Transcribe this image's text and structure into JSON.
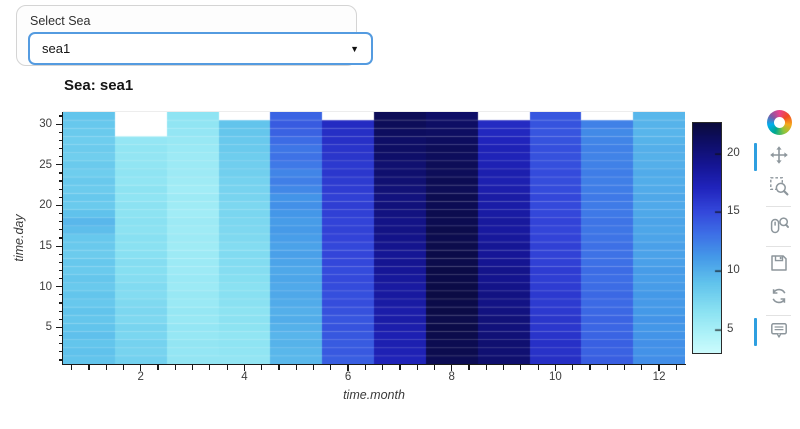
{
  "widget": {
    "label": "Select Sea",
    "selected_value": "sea1",
    "caret": "▼"
  },
  "toolbar": {
    "icon_color": "#8d969c",
    "active_color": "#2e9fe0",
    "logo_colors": [
      "#e9418c",
      "#f04923",
      "#f6a91b",
      "#8cc63f",
      "#00a88e",
      "#00aeef",
      "#7f58a4",
      "#e9418c"
    ],
    "tools": [
      {
        "name": "pan",
        "active": true,
        "divider_after": false
      },
      {
        "name": "box-zoom",
        "active": false,
        "divider_after": true
      },
      {
        "name": "wheel-zoom",
        "active": false,
        "divider_after": true
      },
      {
        "name": "save",
        "active": false,
        "divider_after": false
      },
      {
        "name": "reset",
        "active": false,
        "divider_after": true
      },
      {
        "name": "hover",
        "active": true,
        "divider_after": false
      }
    ]
  },
  "chart_data": {
    "type": "heatmap",
    "title": "Sea: sea1",
    "xlabel": "time.month",
    "ylabel": "time.day",
    "xlim": [
      0.5,
      12.5
    ],
    "ylim": [
      0.5,
      31.5
    ],
    "x_major_ticks": [
      2,
      4,
      6,
      8,
      10,
      12
    ],
    "x_minor_step": 0.33333,
    "y_major_ticks": [
      5,
      10,
      15,
      20,
      25,
      30
    ],
    "y_minor_step": 1,
    "color_low": 3.0,
    "color_high": 22.6,
    "colorbar_ticks": [
      5,
      10,
      15,
      20
    ],
    "colormap_stops": [
      [
        0.0,
        "#ccfbfd"
      ],
      [
        0.08,
        "#aef2f8"
      ],
      [
        0.18,
        "#8be2f2"
      ],
      [
        0.3,
        "#62c4ec"
      ],
      [
        0.42,
        "#4498e8"
      ],
      [
        0.52,
        "#3d6ee6"
      ],
      [
        0.62,
        "#3346da"
      ],
      [
        0.72,
        "#2024bc"
      ],
      [
        0.82,
        "#151593"
      ],
      [
        0.92,
        "#0e0e66"
      ],
      [
        1.0,
        "#0a0a3c"
      ]
    ],
    "series": [
      {
        "month": 1,
        "values": [
          8.9,
          9.0,
          8.8,
          9.1,
          8.9,
          8.7,
          8.9,
          8.6,
          8.8,
          8.5,
          8.7,
          8.4,
          8.6,
          8.3,
          8.5,
          8.6,
          9.2,
          9.6,
          9.0,
          8.4,
          8.6,
          8.3,
          8.5,
          8.2,
          8.4,
          8.1,
          8.3,
          8.2,
          8.4,
          8.6,
          8.8
        ]
      },
      {
        "month": 2,
        "values": [
          7.9,
          7.7,
          7.8,
          7.5,
          7.6,
          7.3,
          7.4,
          7.2,
          7.0,
          7.1,
          6.9,
          6.8,
          6.9,
          6.7,
          6.6,
          6.7,
          6.5,
          6.6,
          6.4,
          6.5,
          6.3,
          6.4,
          6.2,
          6.3,
          6.2,
          6.1,
          6.2,
          6.0
        ]
      },
      {
        "month": 3,
        "values": [
          6.1,
          6.0,
          6.1,
          5.9,
          6.0,
          5.8,
          5.9,
          5.7,
          5.8,
          5.6,
          5.7,
          5.5,
          5.6,
          5.5,
          5.4,
          5.5,
          5.4,
          5.5,
          5.3,
          5.4,
          5.5,
          5.3,
          5.4,
          5.5,
          5.6,
          5.5,
          5.7,
          5.8,
          6.0,
          6.2,
          6.3
        ]
      },
      {
        "month": 4,
        "values": [
          6.1,
          6.2,
          6.3,
          6.2,
          6.4,
          6.5,
          6.4,
          6.6,
          6.7,
          6.6,
          6.8,
          6.9,
          7.0,
          7.1,
          7.0,
          7.2,
          7.3,
          7.4,
          7.5,
          7.4,
          7.6,
          7.7,
          7.8,
          8.0,
          8.1,
          8.2,
          8.4,
          8.5,
          8.7,
          8.9
        ]
      },
      {
        "month": 5,
        "values": [
          9.5,
          9.6,
          9.8,
          9.7,
          9.9,
          10.1,
          10.0,
          10.2,
          10.4,
          10.3,
          10.5,
          10.4,
          10.6,
          10.8,
          10.7,
          10.9,
          11.1,
          11.0,
          11.3,
          11.6,
          11.4,
          12.0,
          12.4,
          12.1,
          12.7,
          13.0,
          12.8,
          13.3,
          13.8,
          14.1,
          13.7
        ]
      },
      {
        "month": 6,
        "values": [
          14.0,
          14.2,
          14.1,
          14.3,
          14.5,
          14.4,
          14.6,
          14.8,
          14.7,
          14.9,
          15.0,
          14.9,
          15.1,
          15.2,
          15.1,
          15.3,
          15.4,
          15.3,
          15.5,
          15.6,
          15.5,
          15.7,
          15.8,
          16.0,
          15.9,
          16.1,
          16.2,
          16.4,
          16.5,
          16.7
        ]
      },
      {
        "month": 7,
        "values": [
          17.3,
          17.5,
          17.7,
          17.6,
          17.9,
          18.1,
          18.0,
          18.3,
          18.5,
          18.4,
          18.7,
          18.9,
          19.1,
          19.0,
          19.3,
          19.5,
          19.7,
          19.6,
          19.9,
          20.1,
          20.0,
          20.3,
          20.5,
          20.7,
          20.6,
          20.9,
          21.1,
          21.0,
          21.3,
          21.5,
          21.6
        ]
      },
      {
        "month": 8,
        "values": [
          21.7,
          21.9,
          21.8,
          22.0,
          22.1,
          22.0,
          22.2,
          22.1,
          22.3,
          22.2,
          22.1,
          22.2,
          22.0,
          22.1,
          22.0,
          21.9,
          22.0,
          21.8,
          21.9,
          21.7,
          21.8,
          21.6,
          21.7,
          21.5,
          21.6,
          21.4,
          21.5,
          21.3,
          21.2,
          21.1,
          21.0
        ]
      },
      {
        "month": 9,
        "values": [
          20.7,
          20.5,
          20.6,
          20.3,
          20.1,
          20.2,
          19.9,
          19.7,
          19.8,
          19.5,
          19.3,
          19.4,
          19.1,
          18.9,
          19.0,
          18.7,
          18.5,
          18.6,
          18.3,
          18.1,
          18.2,
          17.9,
          17.7,
          17.8,
          17.5,
          17.3,
          17.4,
          17.1,
          16.9,
          16.7
        ]
      },
      {
        "month": 10,
        "values": [
          16.5,
          16.3,
          16.4,
          16.2,
          16.0,
          16.1,
          15.9,
          15.8,
          15.9,
          15.7,
          15.6,
          15.7,
          15.5,
          15.4,
          15.5,
          15.3,
          15.2,
          15.3,
          15.1,
          15.0,
          15.1,
          14.9,
          14.8,
          14.9,
          14.7,
          14.6,
          14.7,
          14.5,
          14.4,
          14.5,
          14.3
        ]
      },
      {
        "month": 11,
        "values": [
          14.0,
          13.8,
          13.9,
          13.7,
          13.6,
          13.7,
          13.5,
          13.4,
          13.5,
          13.3,
          13.2,
          13.3,
          13.1,
          13.0,
          13.1,
          12.9,
          12.8,
          12.9,
          12.7,
          12.6,
          12.7,
          12.5,
          12.4,
          12.5,
          12.3,
          12.2,
          12.3,
          12.1,
          11.9,
          12.3
        ]
      },
      {
        "month": 12,
        "values": [
          11.7,
          11.5,
          11.6,
          11.4,
          11.3,
          11.4,
          11.2,
          11.1,
          11.2,
          11.0,
          10.9,
          11.0,
          10.8,
          10.7,
          10.8,
          10.6,
          10.5,
          10.6,
          10.4,
          10.3,
          10.4,
          10.2,
          10.1,
          10.2,
          10.0,
          9.9,
          10.0,
          9.8,
          9.7,
          9.8,
          9.6
        ]
      }
    ]
  }
}
